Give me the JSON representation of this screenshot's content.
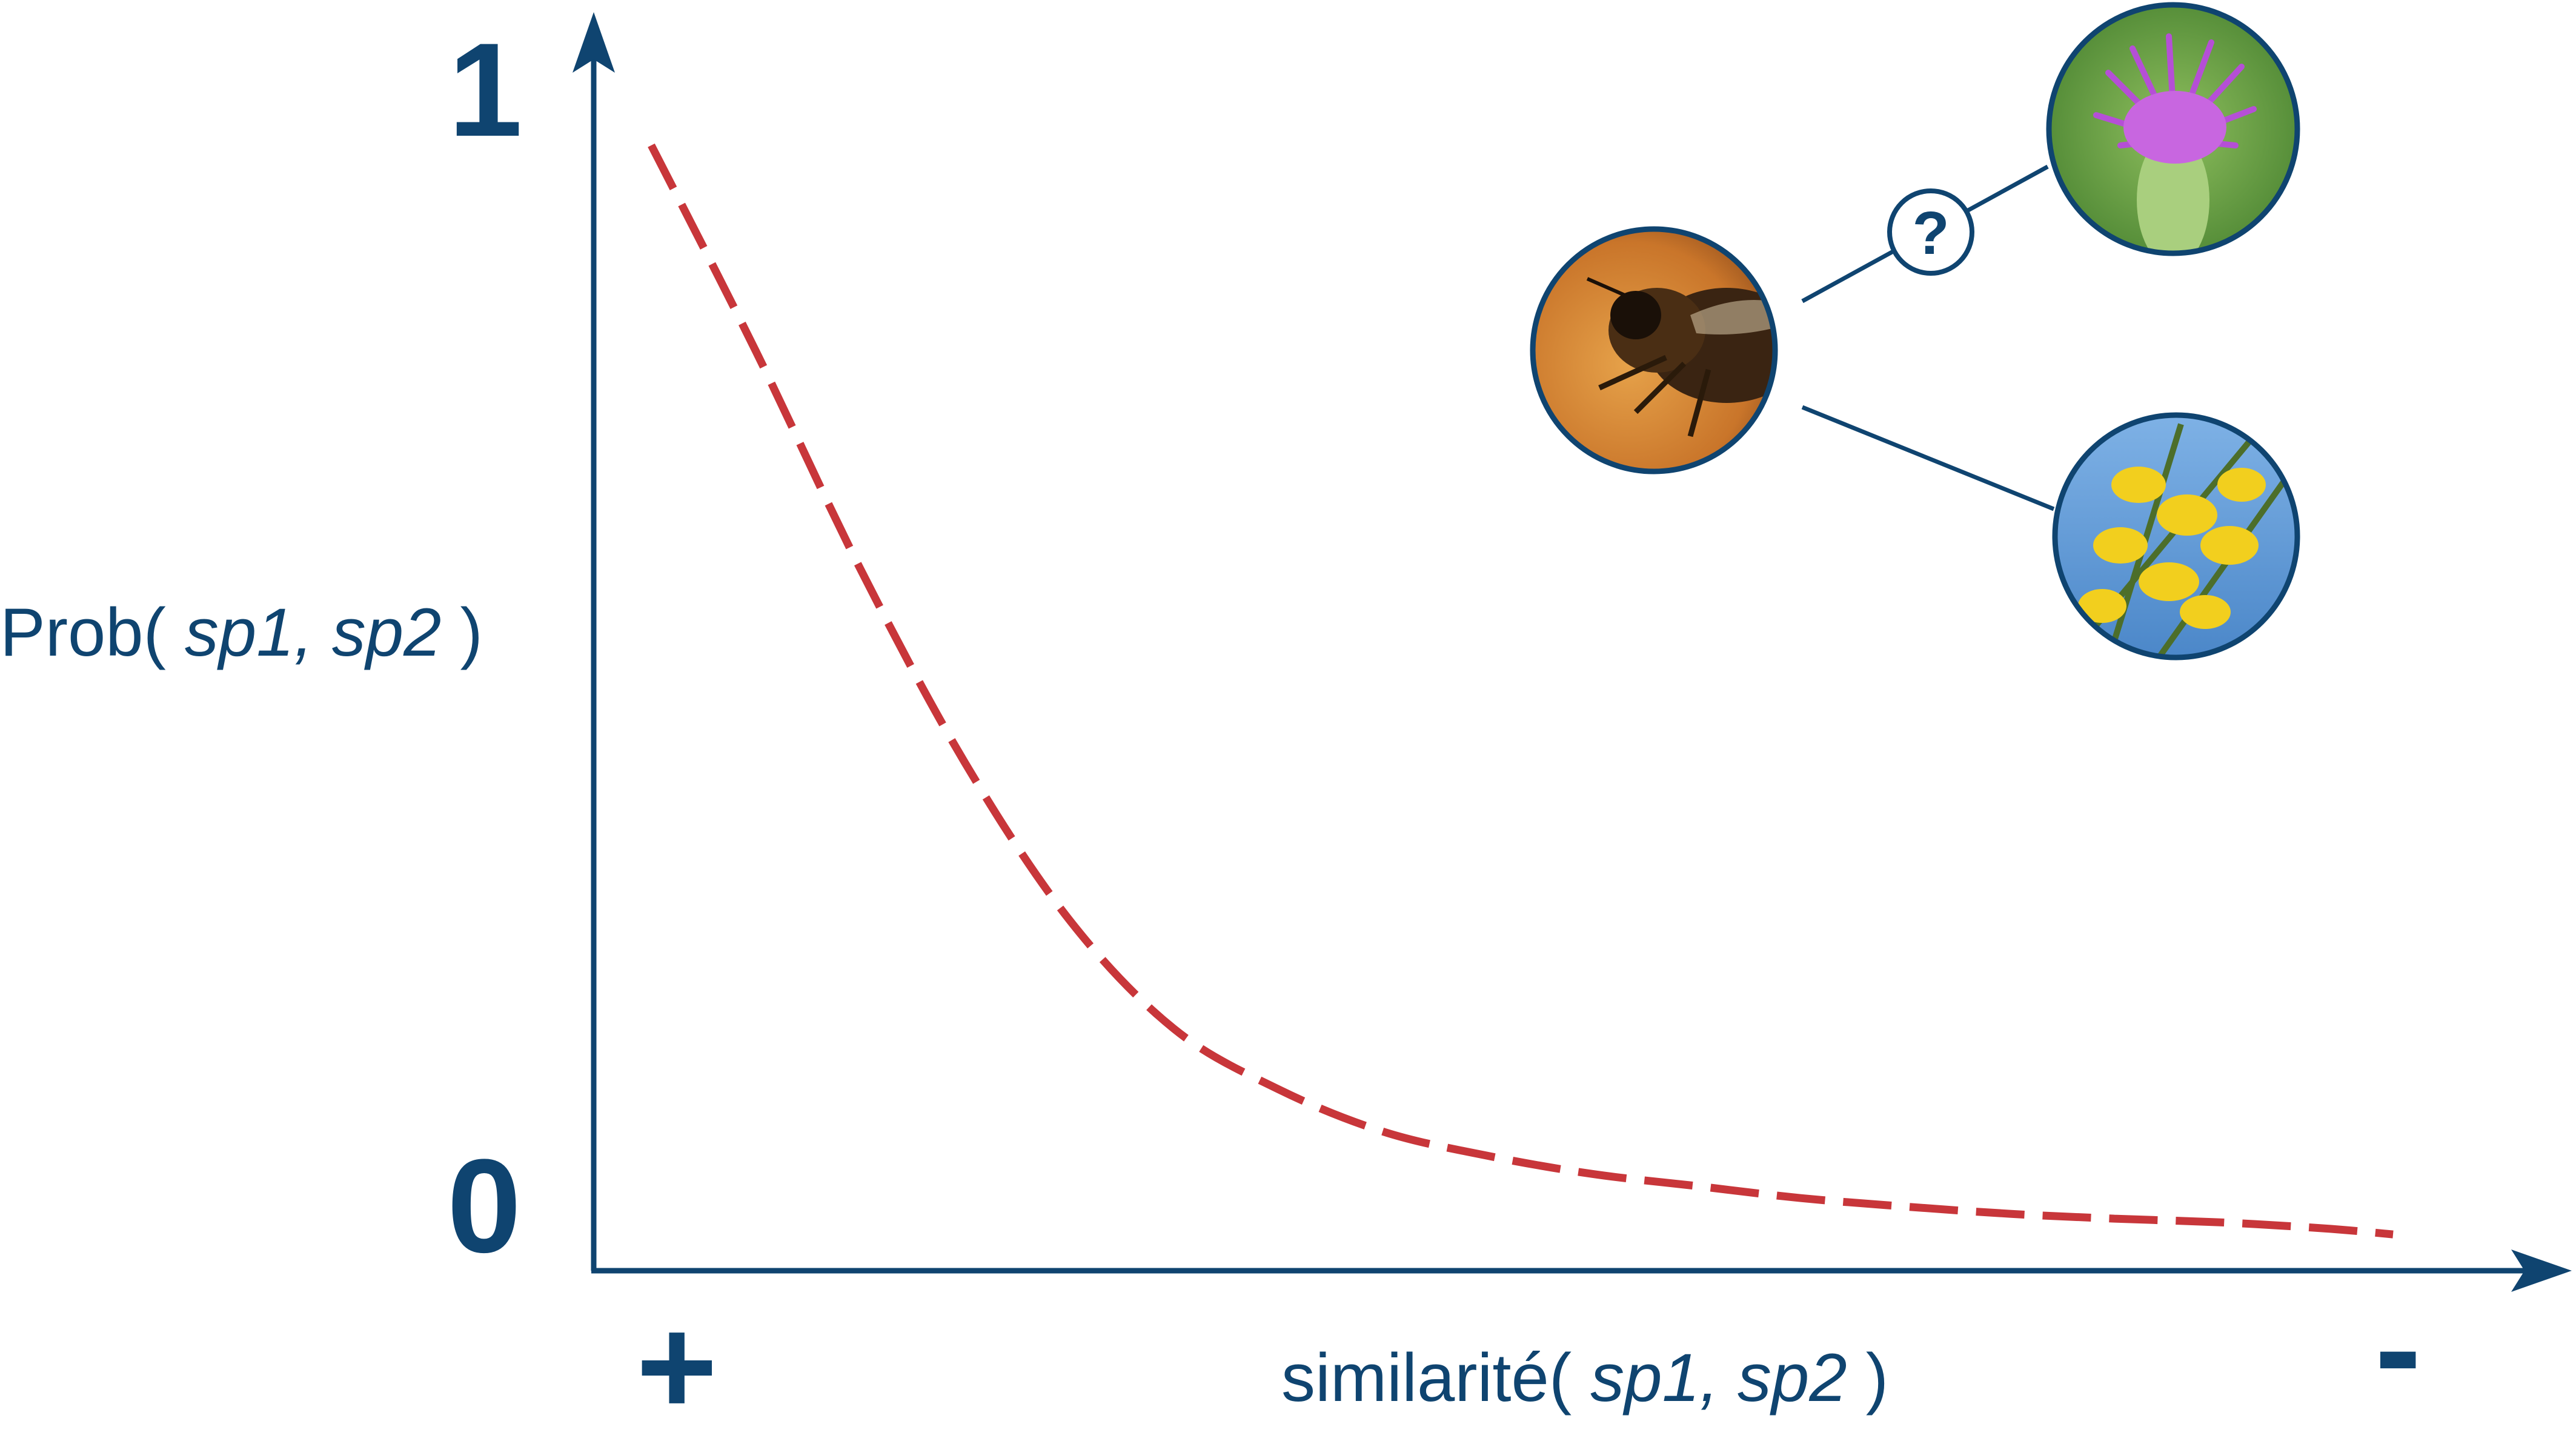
{
  "chart_data": {
    "type": "line",
    "ylabel": {
      "prefix": "Prob( ",
      "args": "sp1, sp2",
      "suffix": " )"
    },
    "xlabel": {
      "prefix": "similarité( ",
      "args": "sp1, sp2",
      "suffix": " )"
    },
    "yticks": {
      "top": "1",
      "bottom": "0"
    },
    "xticks": {
      "left": "+",
      "right": "-"
    },
    "ylim": [
      0,
      1
    ],
    "xlim": [
      0,
      1
    ],
    "series": [
      {
        "style": "dashed",
        "color": "#c8363a",
        "x": [
          0.0,
          0.06,
          0.12,
          0.18,
          0.24,
          0.3,
          0.36,
          0.42,
          0.48,
          0.54,
          0.6,
          0.66,
          0.72,
          0.78,
          0.84,
          0.9,
          0.96,
          1.0
        ],
        "y": [
          0.93,
          0.76,
          0.58,
          0.42,
          0.29,
          0.2,
          0.15,
          0.115,
          0.095,
          0.08,
          0.07,
          0.06,
          0.053,
          0.047,
          0.043,
          0.04,
          0.035,
          0.03
        ]
      }
    ],
    "inset": {
      "center_icon": "bee-icon",
      "targets": [
        "thistle-flower-icon",
        "broom-flower-icon"
      ],
      "question_mark": "?",
      "colors": {
        "axis": "#0f4470",
        "curve": "#c8363a"
      }
    }
  }
}
